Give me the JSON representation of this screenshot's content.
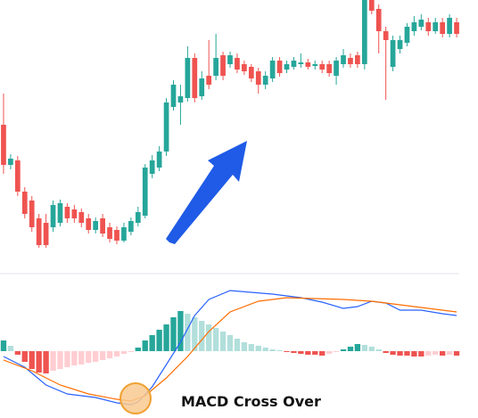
{
  "chart_data": [
    {
      "type": "candlestick",
      "categories": [
        null,
        null,
        null,
        null,
        null,
        null,
        null,
        null,
        null,
        null,
        null,
        null,
        null,
        null,
        null,
        null,
        null,
        null,
        null,
        null,
        null,
        null,
        null,
        null,
        null,
        null,
        null,
        null,
        null,
        null,
        null,
        null,
        null,
        null,
        null,
        null,
        null,
        null,
        null,
        null,
        null,
        null,
        null,
        null,
        null,
        null,
        null,
        null,
        null,
        null,
        null,
        null,
        null,
        null,
        null,
        null,
        null,
        null,
        null,
        null,
        null,
        null,
        null,
        null,
        null
      ],
      "open": [
        160,
        115,
        120,
        85,
        75,
        55,
        50,
        45,
        50,
        68,
        65,
        62,
        55,
        42,
        55,
        45,
        42,
        30,
        40,
        50,
        58,
        105,
        112,
        130,
        180,
        185,
        190,
        235,
        192,
        215,
        215,
        238,
        228,
        235,
        228,
        225,
        220,
        205,
        212,
        232,
        222,
        225,
        228,
        230,
        226,
        228,
        228,
        215,
        228,
        235,
        238,
        228,
        300,
        290,
        265,
        225,
        245,
        252,
        265,
        270,
        275,
        265,
        275,
        262,
        275
      ],
      "high": [
        195,
        127,
        125,
        90,
        80,
        60,
        60,
        75,
        76,
        72,
        70,
        66,
        60,
        56,
        60,
        50,
        46,
        50,
        56,
        68,
        116,
        126,
        136,
        190,
        210,
        205,
        248,
        240,
        220,
        255,
        262,
        242,
        242,
        240,
        232,
        228,
        224,
        220,
        236,
        236,
        232,
        236,
        240,
        234,
        232,
        232,
        232,
        236,
        245,
        240,
        242,
        300,
        300,
        295,
        270,
        260,
        260,
        274,
        282,
        284,
        280,
        280,
        280,
        284,
        280
      ],
      "low": [
        105,
        110,
        80,
        55,
        40,
        22,
        22,
        40,
        46,
        50,
        50,
        45,
        38,
        38,
        34,
        28,
        26,
        28,
        36,
        46,
        55,
        100,
        108,
        125,
        176,
        160,
        186,
        185,
        188,
        200,
        210,
        210,
        224,
        218,
        216,
        208,
        195,
        200,
        208,
        214,
        218,
        222,
        224,
        222,
        222,
        218,
        214,
        205,
        224,
        224,
        224,
        222,
        284,
        240,
        188,
        220,
        240,
        248,
        260,
        266,
        260,
        262,
        258,
        258,
        258
      ],
      "close": [
        115,
        122,
        85,
        60,
        45,
        25,
        25,
        70,
        72,
        55,
        55,
        50,
        42,
        52,
        38,
        32,
        30,
        45,
        52,
        62,
        112,
        120,
        130,
        185,
        205,
        192,
        235,
        190,
        212,
        205,
        235,
        215,
        238,
        222,
        220,
        212,
        205,
        215,
        232,
        218,
        228,
        232,
        230,
        225,
        228,
        222,
        218,
        232,
        238,
        228,
        228,
        300,
        288,
        265,
        255,
        255,
        255,
        270,
        275,
        278,
        265,
        275,
        262,
        280,
        262
      ],
      "xlim": [
        -0.5,
        64.5
      ],
      "ylim": [
        0,
        300
      ],
      "up_color": "#26a69a",
      "down_color": "#ef5350"
    },
    {
      "type": "macd",
      "annotation": "MACD Cross Over",
      "histogram": [
        12,
        6,
        -4,
        -12,
        -20,
        -24,
        -25,
        -22,
        -20,
        -18,
        -16,
        -15,
        -13,
        -12,
        -10,
        -8,
        -6,
        -3,
        -1,
        4,
        12,
        18,
        24,
        30,
        38,
        45,
        42,
        38,
        34,
        30,
        26,
        22,
        18,
        14,
        10,
        8,
        6,
        4,
        2,
        1,
        -1,
        -2,
        -3,
        -4,
        -4,
        -5,
        -3,
        -1,
        2,
        5,
        8,
        7,
        5,
        2,
        -2,
        -4,
        -5,
        -5,
        -6,
        -6,
        -5,
        -4,
        -5,
        -4,
        -5
      ],
      "histogram_colors": {
        "up_rising": "#26a69a",
        "up_falling": "#b2dfdb",
        "down_falling": "#ef5350",
        "down_rising": "#ffcdd2"
      },
      "series": [
        {
          "color": "#2962ff",
          "x": [
            0,
            3,
            6,
            9,
            13,
            16,
            18,
            19,
            21,
            23,
            25,
            27,
            29,
            32,
            35,
            38,
            42,
            45,
            48,
            50,
            52,
            54,
            56,
            59,
            62,
            64
          ],
          "values": [
            -6,
            -18,
            -38,
            -48,
            -52,
            -58,
            -60,
            -57,
            -40,
            -15,
            10,
            40,
            58,
            68,
            66,
            64,
            60,
            55,
            48,
            50,
            56,
            54,
            46,
            46,
            42,
            40
          ]
        },
        {
          "color": "#ff6d00",
          "x": [
            0,
            4,
            8,
            12,
            16,
            18,
            20,
            23,
            26,
            29,
            32,
            36,
            40,
            44,
            48,
            52,
            56,
            60,
            64
          ],
          "values": [
            -10,
            -22,
            -38,
            -48,
            -54,
            -56,
            -50,
            -30,
            -6,
            22,
            44,
            56,
            60,
            59,
            58,
            56,
            52,
            48,
            44
          ]
        }
      ],
      "xlim": [
        -0.5,
        64.5
      ],
      "ylim": [
        -75,
        84
      ]
    }
  ]
}
